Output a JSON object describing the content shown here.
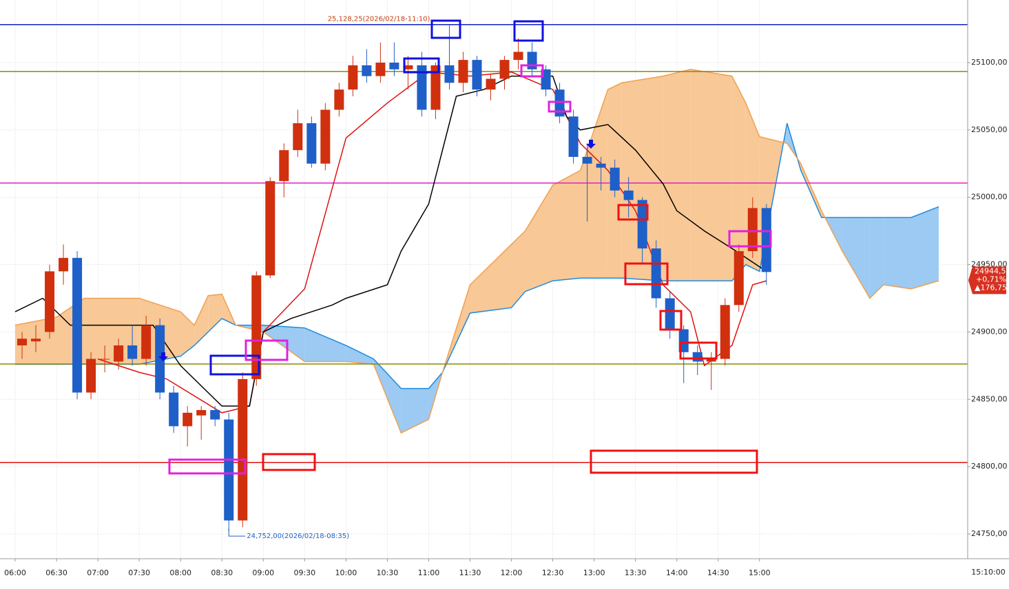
{
  "chart_data": {
    "type": "candlestick",
    "x": [
      "06:00",
      "06:10",
      "06:20",
      "06:30",
      "06:40",
      "06:50",
      "07:00",
      "07:10",
      "07:20",
      "07:30",
      "07:40",
      "07:50",
      "08:00",
      "08:10",
      "08:20",
      "08:30",
      "08:40",
      "08:50",
      "09:00",
      "09:10",
      "09:20",
      "09:30",
      "09:40",
      "09:50",
      "10:00",
      "10:10",
      "10:20",
      "10:30",
      "10:40",
      "10:50",
      "11:00",
      "11:10",
      "11:20",
      "11:30",
      "11:40",
      "11:50",
      "12:00",
      "12:10",
      "12:20",
      "12:30",
      "12:40",
      "12:50",
      "13:00",
      "13:10",
      "13:20",
      "13:30",
      "13:40",
      "13:50",
      "14:00",
      "14:10",
      "14:20",
      "14:30",
      "14:40",
      "14:50",
      "15:00"
    ],
    "candles": [
      [
        24890,
        24900,
        24880,
        24895
      ],
      [
        24893,
        24905,
        24885,
        24895
      ],
      [
        24900,
        24950,
        24895,
        24945
      ],
      [
        24945,
        24965,
        24935,
        24955
      ],
      [
        24955,
        24960,
        24850,
        24855
      ],
      [
        24855,
        24885,
        24850,
        24880
      ],
      [
        24880,
        24890,
        24870,
        24880
      ],
      [
        24878,
        24895,
        24872,
        24890
      ],
      [
        24890,
        24905,
        24875,
        24880
      ],
      [
        24880,
        24912,
        24875,
        24905
      ],
      [
        24905,
        24910,
        24850,
        24855
      ],
      [
        24855,
        24860,
        24825,
        24830
      ],
      [
        24830,
        24845,
        24815,
        24840
      ],
      [
        24838,
        24845,
        24820,
        24842
      ],
      [
        24842,
        24845,
        24830,
        24835
      ],
      [
        24835,
        24840,
        24752,
        24760
      ],
      [
        24760,
        24870,
        24755,
        24865
      ],
      [
        24865,
        24945,
        24860,
        24942
      ],
      [
        24942,
        25015,
        24940,
        25012
      ],
      [
        25012,
        25040,
        25000,
        25035
      ],
      [
        25035,
        25065,
        25030,
        25055
      ],
      [
        25055,
        25060,
        25022,
        25025
      ],
      [
        25025,
        25070,
        25020,
        25065
      ],
      [
        25065,
        25085,
        25060,
        25080
      ],
      [
        25080,
        25105,
        25075,
        25098
      ],
      [
        25098,
        25110,
        25085,
        25090
      ],
      [
        25090,
        25115,
        25085,
        25100
      ],
      [
        25100,
        25115,
        25090,
        25095
      ],
      [
        25095,
        25105,
        25080,
        25098
      ],
      [
        25098,
        25108,
        25060,
        25065
      ],
      [
        25065,
        25100,
        25058,
        25098
      ],
      [
        25098,
        25128.25,
        25080,
        25085
      ],
      [
        25085,
        25108,
        25078,
        25102
      ],
      [
        25102,
        25105,
        25075,
        25080
      ],
      [
        25080,
        25092,
        25072,
        25088
      ],
      [
        25088,
        25105,
        25080,
        25102
      ],
      [
        25102,
        25118,
        25095,
        25108
      ],
      [
        25108,
        25115,
        25090,
        25095
      ],
      [
        25095,
        25098,
        25075,
        25080
      ],
      [
        25080,
        25085,
        25055,
        25060
      ],
      [
        25060,
        25065,
        25025,
        25030
      ],
      [
        25030,
        25040,
        24982,
        25025
      ],
      [
        25025,
        25030,
        25005,
        25022
      ],
      [
        25022,
        25028,
        25000,
        25005
      ],
      [
        25005,
        25015,
        24985,
        24998
      ],
      [
        24998,
        25000,
        24950,
        24962
      ],
      [
        24962,
        24968,
        24918,
        24925
      ],
      [
        24925,
        24930,
        24895,
        24902
      ],
      [
        24902,
        24905,
        24862,
        24885
      ],
      [
        24885,
        24890,
        24868,
        24878
      ],
      [
        24878,
        24885,
        24857,
        24880
      ],
      [
        24880,
        24925,
        24875,
        24920
      ],
      [
        24920,
        24965,
        24915,
        24960
      ],
      [
        24960,
        25000,
        24955,
        24992
      ],
      [
        24992,
        24995,
        24935,
        24944.5
      ]
    ],
    "up_color": "#d0300e",
    "down_color": "#1f5fc8",
    "lines": [
      {
        "color": "#e01010",
        "x": [
          "07:00",
          "07:30",
          "07:50",
          "08:30",
          "08:50",
          "09:00",
          "09:30",
          "10:00",
          "10:30",
          "11:00",
          "11:30",
          "12:00",
          "12:30",
          "12:50",
          "13:10",
          "13:30",
          "13:50",
          "14:10",
          "14:20",
          "14:40",
          "14:55",
          "15:05"
        ],
        "values": [
          24880,
          24870,
          24865,
          24840,
          24845,
          24900,
          24932,
          25044,
          25070,
          25093,
          25090,
          25093,
          25080,
          25040,
          25020,
          24990,
          24935,
          24915,
          24875,
          24890,
          24935,
          24938
        ]
      },
      {
        "color": "#000000",
        "x": [
          "06:00",
          "06:20",
          "06:40",
          "07:40",
          "07:50",
          "08:00",
          "08:30",
          "08:50",
          "09:00",
          "09:20",
          "09:50",
          "10:00",
          "10:30",
          "10:40",
          "11:00",
          "11:20",
          "11:40",
          "12:00",
          "12:30",
          "12:40",
          "12:50",
          "13:10",
          "13:30",
          "13:50",
          "14:00",
          "14:20",
          "14:40",
          "15:05"
        ],
        "values": [
          24915,
          24925,
          24905,
          24905,
          24890,
          24875,
          24845,
          24845,
          24900,
          24910,
          24920,
          24925,
          24935,
          24960,
          24995,
          25075,
          25080,
          25090,
          25090,
          25060,
          25050,
          25054,
          25035,
          25010,
          24990,
          24975,
          24962,
          24945
        ]
      }
    ],
    "cloud": {
      "x": [
        "06:00",
        "06:30",
        "06:50",
        "07:30",
        "08:00",
        "08:10",
        "08:20",
        "08:30",
        "08:40",
        "09:00",
        "09:30",
        "10:00",
        "10:20",
        "10:40",
        "11:00",
        "11:10",
        "11:30",
        "12:00",
        "12:10",
        "12:30",
        "12:50",
        "13:10",
        "13:20",
        "13:50",
        "14:10",
        "14:40",
        "14:50",
        "15:00",
        "15:20",
        "15:30",
        "15:45",
        "16:00",
        "16:20",
        "16:30",
        "16:50",
        "17:10"
      ],
      "span_a": [
        24876,
        24876,
        24876,
        24876,
        24882,
        24890,
        24900,
        24910,
        24905,
        24905,
        24903,
        24890,
        24880,
        24858,
        24858,
        24870,
        24914,
        24918,
        24930,
        24938,
        24940,
        24940,
        24940,
        24938,
        24938,
        24938,
        24950,
        24945,
        25055,
        25020,
        24985,
        24985,
        24985,
        24985,
        24985,
        24993
      ],
      "span_b": [
        24905,
        24911,
        24925,
        24925,
        24915,
        24905,
        24927,
        24928,
        24905,
        24900,
        24878,
        24878,
        24876,
        24825,
        24835,
        24870,
        24935,
        24965,
        24975,
        25009,
        25020,
        25080,
        25085,
        25090,
        25095,
        25090,
        25070,
        25045,
        25040,
        25025,
        24990,
        24960,
        24925,
        24935,
        24932,
        24938
      ],
      "a_color": "#1c8ae0",
      "b_color": "#f0a050",
      "a_fill": "#9ccaf2",
      "b_fill": "#f8c896"
    },
    "hlines": [
      {
        "value": 25128.25,
        "color": "#1020c0"
      },
      {
        "value": 25093.4,
        "color": "#8a8a00"
      },
      {
        "value": 25010.6,
        "color": "#e020c0"
      },
      {
        "value": 24876.2,
        "color": "#8a8a00"
      },
      {
        "value": 24803,
        "color": "#e01010"
      }
    ],
    "annotations": [
      {
        "label": "25,128,25(2026/02/18-11:10)",
        "value": 25128.25,
        "x": "11:10",
        "color": "#c04010"
      },
      {
        "label": "24,752,00(2026/02/18-08:35)",
        "value": 24752,
        "x": "08:35",
        "color": "#1f5fc8"
      }
    ],
    "last_price": {
      "value": 24944.5,
      "label": "24944,50"
    },
    "change_pct": "+0,71%",
    "change": "▲176,75",
    "xlim": [
      "05:49",
      "17:31"
    ],
    "ylim": [
      24731.6,
      25146.5
    ],
    "xticks": [
      "06:00",
      "06:30",
      "07:00",
      "07:30",
      "08:00",
      "08:30",
      "09:00",
      "09:30",
      "10:00",
      "10:30",
      "11:00",
      "11:30",
      "12:00",
      "12:30",
      "13:00",
      "13:30",
      "14:00",
      "14:30",
      "15:00"
    ],
    "time_label": "15:10:00",
    "yticks": [
      {
        "value": 24750,
        "label": "24750,00"
      },
      {
        "value": 24800,
        "label": "24800,00"
      },
      {
        "value": 24850,
        "label": "24850,00"
      },
      {
        "value": 24900,
        "label": "24900,00"
      },
      {
        "value": 24950,
        "label": "24950,00"
      },
      {
        "value": 25000,
        "label": "25000,00"
      },
      {
        "value": 25050,
        "label": "25050,00"
      },
      {
        "value": 25100,
        "label": "25100,00"
      }
    ],
    "grid": true
  }
}
